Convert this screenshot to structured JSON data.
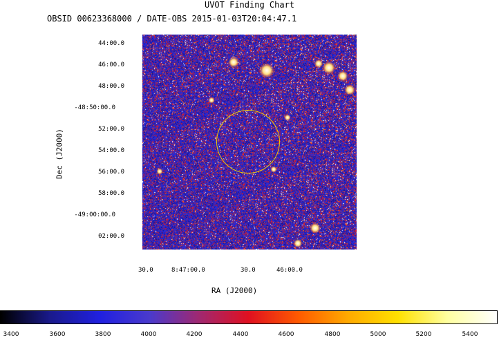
{
  "header": {
    "title": "UVOT Finding Chart",
    "subtitle": "OBSID 00623368000 / DATE-OBS 2015-01-03T20:04:47.1"
  },
  "axes": {
    "x_label": "RA (J2000)",
    "y_label": "Dec (J2000)",
    "dec_ticks": [
      "44:00.0",
      "46:00.0",
      "48:00.0",
      "-48:50:00.0",
      "52:00.0",
      "54:00.0",
      "56:00.0",
      "58:00.0",
      "-49:00:00.0",
      "02:00.0"
    ],
    "ra_ticks": [
      "30.0",
      "8:47:00.0",
      "30.0",
      "46:00.0"
    ]
  },
  "colorbar": {
    "ticks": [
      "3400",
      "3600",
      "3800",
      "4000",
      "4200",
      "4400",
      "4600",
      "4800",
      "5000",
      "5200",
      "5400"
    ],
    "colors": [
      "#000000",
      "#1a1a8c",
      "#2020e0",
      "#4a3acc",
      "#a02870",
      "#e01020",
      "#ff5a00",
      "#ffaa00",
      "#ffe000",
      "#ffffa0",
      "#ffffff"
    ]
  },
  "image": {
    "background_color": "#1a1aa0",
    "circle_color": "#f0d000"
  }
}
